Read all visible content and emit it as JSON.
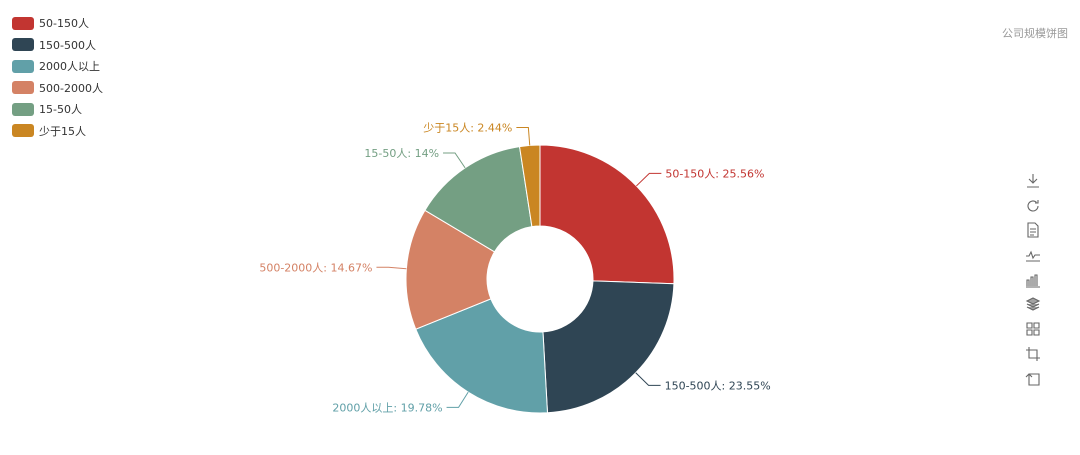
{
  "chart_data": {
    "type": "pie",
    "variant": "donut",
    "title": "公司规模饼图",
    "series": [
      {
        "name": "50-150人",
        "value": 25.56,
        "label": "50-150人: 25.56%",
        "color": "#c23531"
      },
      {
        "name": "150-500人",
        "value": 23.55,
        "label": "150-500人: 23.55%",
        "color": "#2f4554"
      },
      {
        "name": "2000人以上",
        "value": 19.78,
        "label": "2000人以上: 19.78%",
        "color": "#61a0a8"
      },
      {
        "name": "500-2000人",
        "value": 14.67,
        "label": "500-2000人: 14.67%",
        "color": "#d48265"
      },
      {
        "name": "15-50人",
        "value": 14,
        "label": "15-50人: 14%",
        "color": "#749f83"
      },
      {
        "name": "少于15人",
        "value": 2.44,
        "label": "少于15人: 2.44%",
        "color": "#ca8622"
      }
    ],
    "legend": {
      "position": "top-left",
      "orient": "vertical"
    }
  },
  "toolbox": {
    "position": "right",
    "icons": [
      "download-icon",
      "refresh-icon",
      "data-view-icon",
      "line-chart-icon",
      "bar-chart-icon",
      "stack-icon",
      "tiled-icon",
      "zoom-icon",
      "zoom-reset-icon"
    ],
    "icon_color": "#666666"
  }
}
